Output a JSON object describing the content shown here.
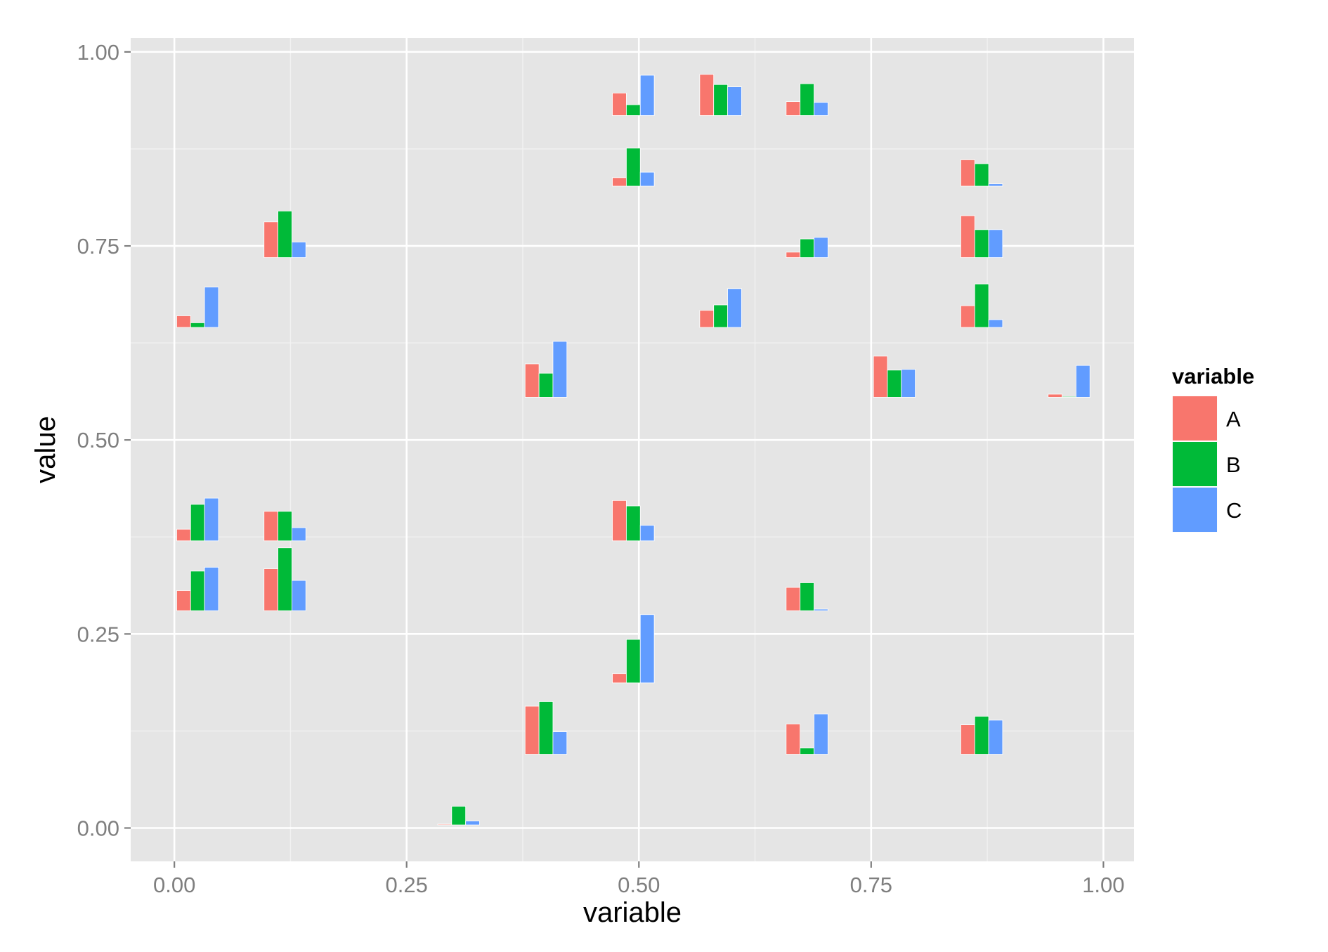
{
  "chart_data": {
    "type": "bar",
    "xlabel": "variable",
    "ylabel": "value",
    "xlim": [
      -0.047,
      1.033
    ],
    "ylim": [
      -0.043,
      1.018
    ],
    "x_ticks": [
      {
        "value": 0.0,
        "label": "0.00"
      },
      {
        "value": 0.25,
        "label": "0.25"
      },
      {
        "value": 0.5,
        "label": "0.50"
      },
      {
        "value": 0.75,
        "label": "0.75"
      },
      {
        "value": 1.0,
        "label": "1.00"
      }
    ],
    "y_ticks": [
      {
        "value": 0.0,
        "label": "0.00"
      },
      {
        "value": 0.25,
        "label": "0.25"
      },
      {
        "value": 0.5,
        "label": "0.50"
      },
      {
        "value": 0.75,
        "label": "0.75"
      },
      {
        "value": 1.0,
        "label": "1.00"
      }
    ],
    "grid": true,
    "panel_background": "#E5E5E5",
    "legend": {
      "title": "variable",
      "position": "right"
    },
    "bar_width": 0.015,
    "series": [
      {
        "name": "A",
        "color": "#F8766D"
      },
      {
        "name": "B",
        "color": "#00BA38"
      },
      {
        "name": "C",
        "color": "#619CFF"
      }
    ],
    "groups": [
      {
        "x": 0.025,
        "base": 0.645,
        "A": 0.66,
        "B": 0.651,
        "C": 0.697
      },
      {
        "x": 0.025,
        "base": 0.37,
        "A": 0.385,
        "B": 0.417,
        "C": 0.425
      },
      {
        "x": 0.025,
        "base": 0.28,
        "A": 0.306,
        "B": 0.331,
        "C": 0.336
      },
      {
        "x": 0.119,
        "base": 0.735,
        "A": 0.781,
        "B": 0.795,
        "C": 0.755
      },
      {
        "x": 0.119,
        "base": 0.37,
        "A": 0.408,
        "B": 0.408,
        "C": 0.387
      },
      {
        "x": 0.119,
        "base": 0.28,
        "A": 0.334,
        "B": 0.361,
        "C": 0.319
      },
      {
        "x": 0.306,
        "base": 0.004,
        "A": 0.005,
        "B": 0.028,
        "C": 0.009
      },
      {
        "x": 0.4,
        "base": 0.555,
        "A": 0.598,
        "B": 0.586,
        "C": 0.627
      },
      {
        "x": 0.4,
        "base": 0.095,
        "A": 0.157,
        "B": 0.163,
        "C": 0.124
      },
      {
        "x": 0.494,
        "base": 0.918,
        "A": 0.947,
        "B": 0.932,
        "C": 0.97
      },
      {
        "x": 0.494,
        "base": 0.827,
        "A": 0.838,
        "B": 0.876,
        "C": 0.845
      },
      {
        "x": 0.494,
        "base": 0.37,
        "A": 0.422,
        "B": 0.415,
        "C": 0.39
      },
      {
        "x": 0.494,
        "base": 0.187,
        "A": 0.199,
        "B": 0.243,
        "C": 0.275
      },
      {
        "x": 0.588,
        "base": 0.918,
        "A": 0.971,
        "B": 0.958,
        "C": 0.955
      },
      {
        "x": 0.588,
        "base": 0.645,
        "A": 0.667,
        "B": 0.674,
        "C": 0.695
      },
      {
        "x": 0.681,
        "base": 0.918,
        "A": 0.936,
        "B": 0.959,
        "C": 0.935
      },
      {
        "x": 0.681,
        "base": 0.735,
        "A": 0.742,
        "B": 0.759,
        "C": 0.761
      },
      {
        "x": 0.681,
        "base": 0.28,
        "A": 0.31,
        "B": 0.316,
        "C": 0.282
      },
      {
        "x": 0.681,
        "base": 0.095,
        "A": 0.134,
        "B": 0.103,
        "C": 0.147
      },
      {
        "x": 0.775,
        "base": 0.555,
        "A": 0.608,
        "B": 0.59,
        "C": 0.591
      },
      {
        "x": 0.869,
        "base": 0.827,
        "A": 0.861,
        "B": 0.856,
        "C": 0.83
      },
      {
        "x": 0.869,
        "base": 0.735,
        "A": 0.789,
        "B": 0.771,
        "C": 0.771
      },
      {
        "x": 0.869,
        "base": 0.645,
        "A": 0.673,
        "B": 0.701,
        "C": 0.655
      },
      {
        "x": 0.869,
        "base": 0.095,
        "A": 0.133,
        "B": 0.144,
        "C": 0.139
      },
      {
        "x": 0.963,
        "base": 0.555,
        "A": 0.559,
        "B": 0.556,
        "C": 0.596
      }
    ]
  }
}
